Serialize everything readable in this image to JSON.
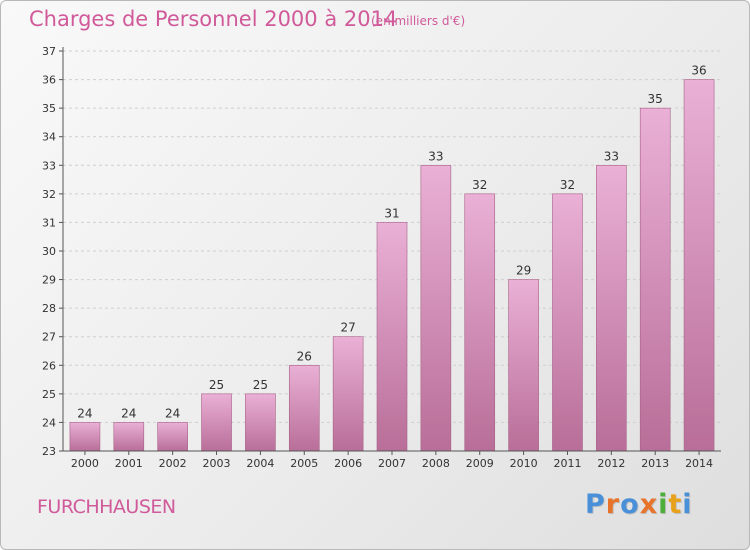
{
  "header": {
    "title": "Charges de Personnel 2000 à 2014",
    "subtitle": "(en milliers d'€)"
  },
  "footer": {
    "commune": "FURCHHAUSEN",
    "logo": {
      "text": "Proxiti",
      "colors": [
        "#4a90d9",
        "#e8732a",
        "#4a90d9",
        "#e8732a",
        "#4caf3a",
        "#e8a21a",
        "#4a90d9"
      ]
    }
  },
  "colors": {
    "bar_top": "#eab0d6",
    "bar_bottom": "#b86e98",
    "accent": "#d05a9a",
    "axis": "#555555"
  },
  "chart_data": {
    "type": "bar",
    "categories": [
      "2000",
      "2001",
      "2002",
      "2003",
      "2004",
      "2005",
      "2006",
      "2007",
      "2008",
      "2009",
      "2010",
      "2011",
      "2012",
      "2013",
      "2014"
    ],
    "values": [
      24,
      24,
      24,
      25,
      25,
      26,
      27,
      31,
      33,
      32,
      29,
      32,
      33,
      35,
      36
    ],
    "value_labels": [
      "24",
      "24",
      "24",
      "25",
      "25",
      "26",
      "27",
      "31",
      "33",
      "32",
      "29",
      "32",
      "33",
      "35",
      "36"
    ],
    "title": "Charges de Personnel 2000 à 2014",
    "subtitle": "(en milliers d'€)",
    "ylim": [
      23,
      37
    ],
    "yticks": [
      23,
      24,
      25,
      26,
      27,
      28,
      29,
      30,
      31,
      32,
      33,
      34,
      35,
      36,
      37
    ],
    "grid": true
  }
}
